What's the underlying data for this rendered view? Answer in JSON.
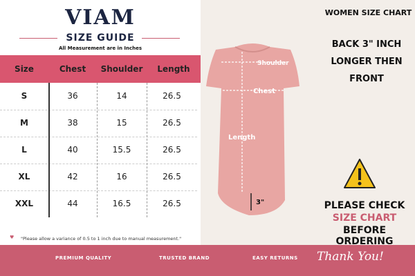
{
  "header": {
    "brand": "VIAM",
    "subtitle": "SIZE GUIDE",
    "note": "All Measurement are in Inches"
  },
  "table": {
    "columns": [
      "Size",
      "Chest",
      "Shoulder",
      "Length"
    ],
    "rows": [
      [
        "S",
        36,
        14,
        26.5
      ],
      [
        "M",
        38,
        15,
        26.5
      ],
      [
        "L",
        40,
        15.5,
        26.5
      ],
      [
        "XL",
        42,
        16,
        26.5
      ],
      [
        "XXL",
        44,
        16.5,
        26.5
      ]
    ]
  },
  "footnote": "\"Please allow a variance of 0.5 to 1 inch due to manual measurement.\"",
  "right": {
    "title": "WOMEN SIZE CHART",
    "back_note": "BACK 3\" INCH LONGER THEN FRONT",
    "diagram": {
      "shoulder": "Shoulder",
      "chest": "Chest",
      "length": "Length",
      "hem": "3\""
    },
    "warning": [
      "PLEASE CHECK",
      "SIZE CHART",
      "BEFORE ORDERING"
    ]
  },
  "footer": {
    "items": [
      "PREMIUM QUALITY",
      "TRUSTED BRAND",
      "EASY RETURNS"
    ],
    "thanks": "Thank You!"
  }
}
